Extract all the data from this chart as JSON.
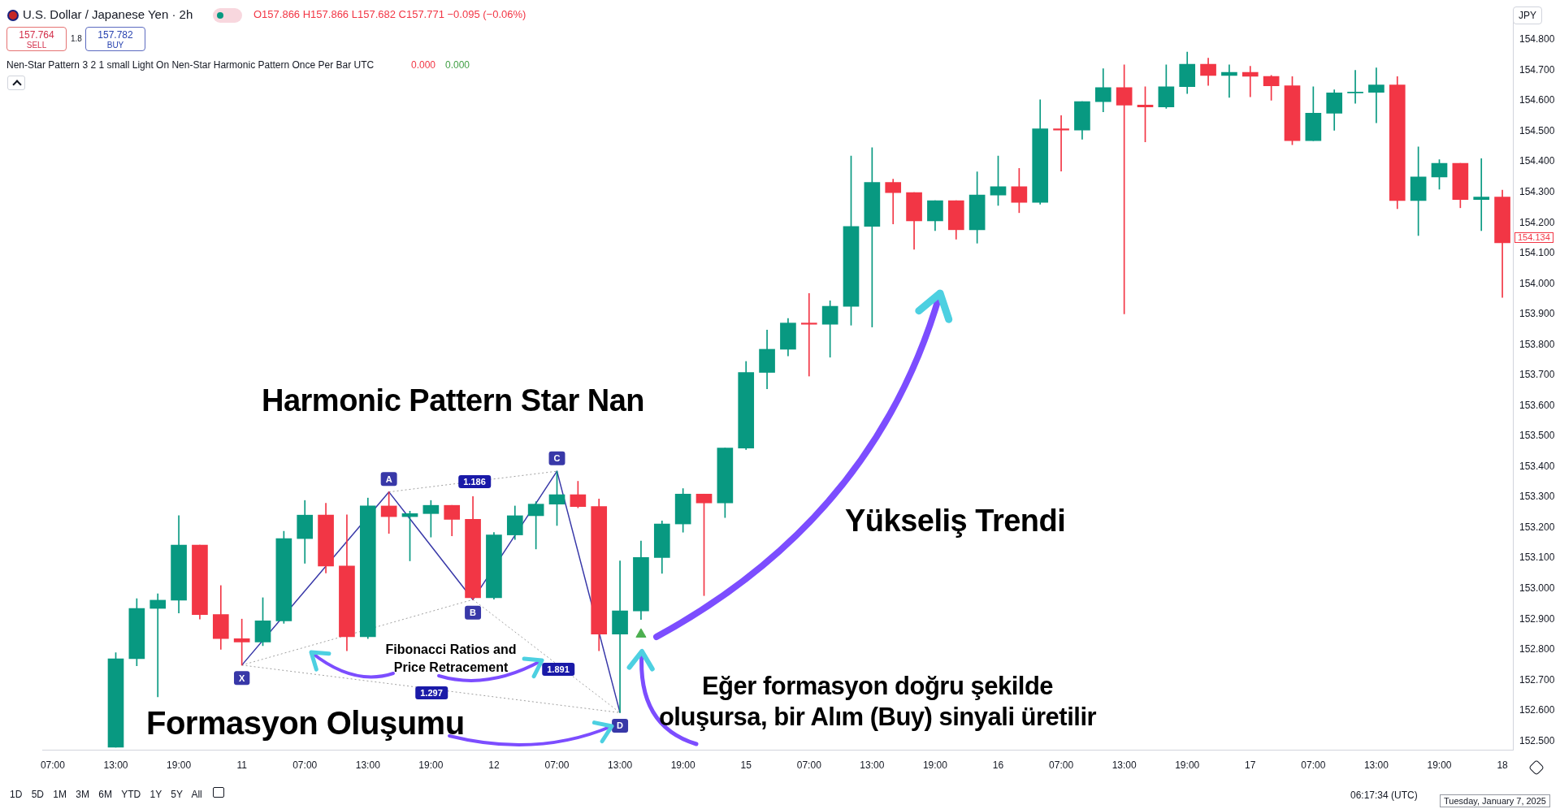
{
  "chart_data": {
    "type": "candlestick",
    "title": "U.S. Dollar / Japanese Yen · 2h",
    "subtitle": "O157.866 H157.866 L157.682 C157.771 −0.095 (−0.06%)",
    "categories": [
      "07:00",
      null,
      null,
      "13:00",
      null,
      null,
      "19:00",
      null,
      null,
      "11",
      null,
      null,
      "07:00",
      null,
      null,
      "13:00",
      null,
      null,
      "19:00",
      null,
      null,
      "12",
      null,
      null,
      "07:00",
      null,
      null,
      "13:00",
      null,
      null,
      "19:00",
      null,
      null,
      "15",
      null,
      null,
      "07:00",
      null,
      null,
      "13:00",
      null,
      null,
      "19:00",
      null,
      null,
      "16",
      null,
      null,
      "07:00",
      null,
      null,
      "13:00",
      null,
      null,
      "19:00",
      null,
      null,
      "17",
      null,
      null,
      "07:00",
      null,
      null,
      "13:00",
      null,
      null,
      "19:00",
      null,
      null,
      "18"
    ],
    "ohlc": [
      null,
      null,
      null,
      [
        152.48,
        152.79,
        152.48,
        152.77
      ],
      [
        152.77,
        152.967,
        152.747,
        152.935
      ],
      [
        152.935,
        152.983,
        152.645,
        152.962
      ],
      [
        152.962,
        153.239,
        152.92,
        153.143
      ],
      [
        153.143,
        153.143,
        152.9,
        152.915
      ],
      [
        152.915,
        153.01,
        152.801,
        152.836
      ],
      [
        152.836,
        152.9,
        152.749,
        152.825
      ],
      [
        152.825,
        152.97,
        152.813,
        152.894
      ],
      [
        152.894,
        153.188,
        152.886,
        153.164
      ],
      [
        153.164,
        153.289,
        153.083,
        153.241
      ],
      [
        153.241,
        153.28,
        153.051,
        153.074
      ],
      [
        153.074,
        153.242,
        152.796,
        152.842
      ],
      [
        152.842,
        153.297,
        152.836,
        153.271
      ],
      [
        153.271,
        153.317,
        153.181,
        153.236
      ],
      [
        153.236,
        153.254,
        153.091,
        153.246
      ],
      [
        153.246,
        153.289,
        153.169,
        153.273
      ],
      [
        153.273,
        153.273,
        153.173,
        153.227
      ],
      [
        153.227,
        153.302,
        152.964,
        152.97
      ],
      [
        152.97,
        153.184,
        152.965,
        153.176
      ],
      [
        153.176,
        153.271,
        153.161,
        153.239
      ],
      [
        153.239,
        153.285,
        153.13,
        153.277
      ],
      [
        153.277,
        153.385,
        153.207,
        153.308
      ],
      [
        153.308,
        153.352,
        153.265,
        153.269
      ],
      [
        153.269,
        153.294,
        152.796,
        152.851
      ],
      [
        152.851,
        153.091,
        152.593,
        152.927
      ],
      [
        152.927,
        153.156,
        152.899,
        153.102
      ],
      [
        153.102,
        153.222,
        153.05,
        153.212
      ],
      [
        153.212,
        153.328,
        153.185,
        153.31
      ],
      [
        153.31,
        153.31,
        152.977,
        153.281
      ],
      [
        153.281,
        153.461,
        153.233,
        153.461
      ],
      [
        153.461,
        153.745,
        153.456,
        153.709
      ],
      [
        153.709,
        153.848,
        153.655,
        153.785
      ],
      [
        153.785,
        153.886,
        153.763,
        153.871
      ],
      [
        153.871,
        153.968,
        153.697,
        153.867
      ],
      [
        153.867,
        153.944,
        153.759,
        153.926
      ],
      [
        153.926,
        154.419,
        153.864,
        154.188
      ],
      [
        154.188,
        154.446,
        153.858,
        154.332
      ],
      [
        154.332,
        154.343,
        154.196,
        154.299
      ],
      [
        154.299,
        154.299,
        154.113,
        154.206
      ],
      [
        154.206,
        154.272,
        154.174,
        154.272
      ],
      [
        154.272,
        154.272,
        154.146,
        154.177
      ],
      [
        154.177,
        154.367,
        154.133,
        154.291
      ],
      [
        154.291,
        154.419,
        154.257,
        154.318
      ],
      [
        154.318,
        154.378,
        154.233,
        154.267
      ],
      [
        154.267,
        154.603,
        154.261,
        154.508
      ],
      [
        154.508,
        154.551,
        154.369,
        154.504
      ],
      [
        154.504,
        154.597,
        154.474,
        154.597
      ],
      [
        154.597,
        154.705,
        154.564,
        154.643
      ],
      [
        154.643,
        154.718,
        153.901,
        154.586
      ],
      [
        154.586,
        154.646,
        154.465,
        154.58
      ],
      [
        154.58,
        154.718,
        154.575,
        154.646
      ],
      [
        154.646,
        154.76,
        154.624,
        154.72
      ],
      [
        154.72,
        154.74,
        154.65,
        154.683
      ],
      [
        154.683,
        154.718,
        154.611,
        154.693
      ],
      [
        154.693,
        154.713,
        154.613,
        154.68
      ],
      [
        154.68,
        154.683,
        154.602,
        154.649
      ],
      [
        154.649,
        154.679,
        154.456,
        154.469
      ],
      [
        154.469,
        154.646,
        154.469,
        154.559
      ],
      [
        154.559,
        154.636,
        154.503,
        154.626
      ],
      [
        154.626,
        154.7,
        154.592,
        154.628
      ],
      [
        154.628,
        154.708,
        154.528,
        154.652
      ],
      [
        154.652,
        154.679,
        154.246,
        154.273
      ],
      [
        154.273,
        154.449,
        154.158,
        154.35
      ],
      [
        154.35,
        154.407,
        154.31,
        154.395
      ],
      [
        154.395,
        154.395,
        154.249,
        154.276
      ],
      [
        154.276,
        154.41,
        154.174,
        154.284
      ],
      [
        154.284,
        154.307,
        153.955,
        154.134
      ]
    ],
    "colors": [
      null,
      null,
      null,
      "#089981",
      "#089981",
      "#089981",
      "#089981",
      "#f23645",
      "#f23645",
      "#f23645",
      "#089981",
      "#089981",
      "#089981",
      "#f23645",
      "#f23645",
      "#089981",
      "#f23645",
      "#089981",
      "#089981",
      "#f23645",
      "#f23645",
      "#089981",
      "#089981",
      "#089981",
      "#089981",
      "#f23645",
      "#f23645",
      "#089981",
      "#089981",
      "#089981",
      "#089981",
      "#f23645",
      "#089981",
      "#089981",
      "#089981",
      "#089981",
      "#f23645",
      "#089981",
      "#089981",
      "#089981",
      "#f23645",
      "#f23645",
      "#089981",
      "#f23645",
      "#089981",
      "#089981",
      "#f23645",
      "#089981",
      "#f23645",
      "#089981",
      "#089981",
      "#f23645",
      "#f23645",
      "#089981",
      "#089981",
      "#f23645",
      "#089981",
      "#f23645",
      "#f23645",
      "#f23645",
      "#089981",
      "#089981",
      "#089981",
      "#089981",
      "#f23645",
      "#089981",
      "#089981",
      "#f23645",
      "#089981",
      "#f23645"
    ],
    "series": [
      {
        "type": "line",
        "color": "#3838a8",
        "line_style": "solid",
        "values": [
          null,
          null,
          null,
          null,
          null,
          null,
          null,
          null,
          null,
          152.749,
          null,
          null,
          null,
          null,
          null,
          null,
          153.317,
          null,
          null,
          null,
          152.964,
          null,
          null,
          null,
          153.385,
          null,
          null,
          152.593,
          null,
          null,
          null,
          null,
          null,
          null,
          null,
          null,
          null,
          null,
          null,
          null,
          null,
          null,
          null,
          null,
          null,
          null,
          null,
          null,
          null,
          null,
          null,
          null,
          null,
          null,
          null,
          null,
          null,
          null,
          null,
          null,
          null,
          null,
          null,
          null,
          null,
          null,
          null,
          null,
          null,
          null
        ],
        "value_labels": [
          null,
          null,
          null,
          null,
          null,
          null,
          null,
          null,
          null,
          "X",
          null,
          null,
          null,
          null,
          null,
          null,
          "A",
          null,
          null,
          null,
          "B",
          null,
          null,
          null,
          "C",
          null,
          null,
          "D",
          null,
          null,
          null,
          null,
          null,
          null,
          null,
          null,
          null,
          null,
          null,
          null,
          null,
          null,
          null,
          null,
          null,
          null,
          null,
          null,
          null,
          null,
          null,
          null,
          null,
          null,
          null,
          null,
          null,
          null,
          null,
          null,
          null,
          null,
          null,
          null,
          null,
          null,
          null,
          null,
          null,
          null
        ]
      },
      {
        "type": "line",
        "color": "#a0a0a0",
        "line_style": "dotted",
        "values": [
          null,
          null,
          null,
          null,
          null,
          null,
          null,
          null,
          null,
          152.749,
          null,
          null,
          null,
          null,
          null,
          null,
          null,
          null,
          null,
          null,
          152.964,
          null,
          null,
          null,
          null,
          null,
          null,
          null,
          null,
          null,
          null,
          null,
          null,
          null,
          null,
          null,
          null,
          null,
          null,
          null,
          null,
          null,
          null,
          null,
          null,
          null,
          null,
          null,
          null,
          null,
          null,
          null,
          null,
          null,
          null,
          null,
          null,
          null,
          null,
          null,
          null,
          null,
          null,
          null,
          null,
          null,
          null,
          null,
          null,
          null
        ]
      },
      {
        "type": "line",
        "color": "#a0a0a0",
        "line_style": "dotted",
        "values": [
          null,
          null,
          null,
          null,
          null,
          null,
          null,
          null,
          null,
          null,
          null,
          null,
          null,
          null,
          null,
          null,
          153.317,
          null,
          null,
          null,
          null,
          null,
          null,
          null,
          153.385,
          null,
          null,
          null,
          null,
          null,
          null,
          null,
          null,
          null,
          null,
          null,
          null,
          null,
          null,
          null,
          null,
          null,
          null,
          null,
          null,
          null,
          null,
          null,
          null,
          null,
          null,
          null,
          null,
          null,
          null,
          null,
          null,
          null,
          null,
          null,
          null,
          null,
          null,
          null,
          null,
          null,
          null,
          null,
          null,
          null
        ]
      },
      {
        "type": "line",
        "color": "#a0a0a0",
        "line_style": "dotted",
        "values": [
          null,
          null,
          null,
          null,
          null,
          null,
          null,
          null,
          null,
          152.749,
          null,
          null,
          null,
          null,
          null,
          null,
          null,
          null,
          null,
          null,
          null,
          null,
          null,
          null,
          null,
          null,
          null,
          152.593,
          null,
          null,
          null,
          null,
          null,
          null,
          null,
          null,
          null,
          null,
          null,
          null,
          null,
          null,
          null,
          null,
          null,
          null,
          null,
          null,
          null,
          null,
          null,
          null,
          null,
          null,
          null,
          null,
          null,
          null,
          null,
          null,
          null,
          null,
          null,
          null,
          null,
          null,
          null,
          null,
          null,
          null
        ]
      },
      {
        "type": "line",
        "color": "#a0a0a0",
        "line_style": "dotted",
        "values": [
          null,
          null,
          null,
          null,
          null,
          null,
          null,
          null,
          null,
          null,
          null,
          null,
          null,
          null,
          null,
          null,
          null,
          null,
          null,
          null,
          152.964,
          null,
          null,
          null,
          null,
          null,
          null,
          152.593,
          null,
          null,
          null,
          null,
          null,
          null,
          null,
          null,
          null,
          null,
          null,
          null,
          null,
          null,
          null,
          null,
          null,
          null,
          null,
          null,
          null,
          null,
          null,
          null,
          null,
          null,
          null,
          null,
          null,
          null,
          null,
          null,
          null,
          null,
          null,
          null,
          null,
          null,
          null,
          null,
          null,
          null
        ]
      },
      {
        "type": "scatter",
        "color": "#4caf50",
        "marker": "triangle",
        "values": [
          null,
          null,
          null,
          null,
          null,
          null,
          null,
          null,
          null,
          null,
          null,
          null,
          null,
          null,
          null,
          null,
          null,
          null,
          null,
          null,
          null,
          null,
          null,
          null,
          null,
          null,
          null,
          null,
          152.85,
          null,
          null,
          null,
          null,
          null,
          null,
          null,
          null,
          null,
          null,
          null,
          null,
          null,
          null,
          null,
          null,
          null,
          null,
          null,
          null,
          null,
          null,
          null,
          null,
          null,
          null,
          null,
          null,
          null,
          null,
          null,
          null,
          null,
          null,
          null,
          null,
          null,
          null,
          null,
          null,
          null
        ]
      }
    ],
    "ylim": [
      152.47,
      154.89
    ],
    "yticks": [
      {
        "value": 152.5,
        "label": "152.500"
      },
      {
        "value": 152.6,
        "label": "152.600"
      },
      {
        "value": 152.7,
        "label": "152.700"
      },
      {
        "value": 152.8,
        "label": "152.800"
      },
      {
        "value": 152.9,
        "label": "152.900"
      },
      {
        "value": 153.0,
        "label": "153.000"
      },
      {
        "value": 153.1,
        "label": "153.100"
      },
      {
        "value": 153.2,
        "label": "153.200"
      },
      {
        "value": 153.3,
        "label": "153.300"
      },
      {
        "value": 153.4,
        "label": "153.400"
      },
      {
        "value": 153.5,
        "label": "153.500"
      },
      {
        "value": 153.6,
        "label": "153.600"
      },
      {
        "value": 153.7,
        "label": "153.700"
      },
      {
        "value": 153.8,
        "label": "153.800"
      },
      {
        "value": 153.9,
        "label": "153.900"
      },
      {
        "value": 154.0,
        "label": "154.000"
      },
      {
        "value": 154.1,
        "label": "154.100"
      },
      {
        "value": 154.2,
        "label": "154.200"
      },
      {
        "value": 154.3,
        "label": "154.300"
      },
      {
        "value": 154.4,
        "label": "154.400"
      },
      {
        "value": 154.5,
        "label": "154.500"
      },
      {
        "value": 154.6,
        "label": "154.600"
      },
      {
        "value": 154.7,
        "label": "154.700"
      },
      {
        "value": 154.8,
        "label": "154.800"
      }
    ],
    "annotations": [
      "157.764",
      "SELL",
      "1.8",
      "157.782",
      "BUY",
      "Nen-Star Pattern 3 2 1 small Light On Nen-Star Harmonic Pattern Once Per Bar UTC",
      "0.000",
      "0.000",
      "Harmonic Pattern Star Nan",
      "Fibonacci Ratios and Price Retracement",
      "Formasyon Oluşumu",
      "Yükseliş Trendi",
      "Eğer formasyon doğru şekilde oluşursa, bir Alım (Buy) sinyali üretilir",
      "JPY",
      "1D 5D 1M 3M 6M YTD 1Y 5Y All",
      "06:17:34 (UTC)",
      "Tuesday, January 7, 2025",
      "1.186",
      "1.297",
      "1.891",
      "154.134"
    ]
  }
}
